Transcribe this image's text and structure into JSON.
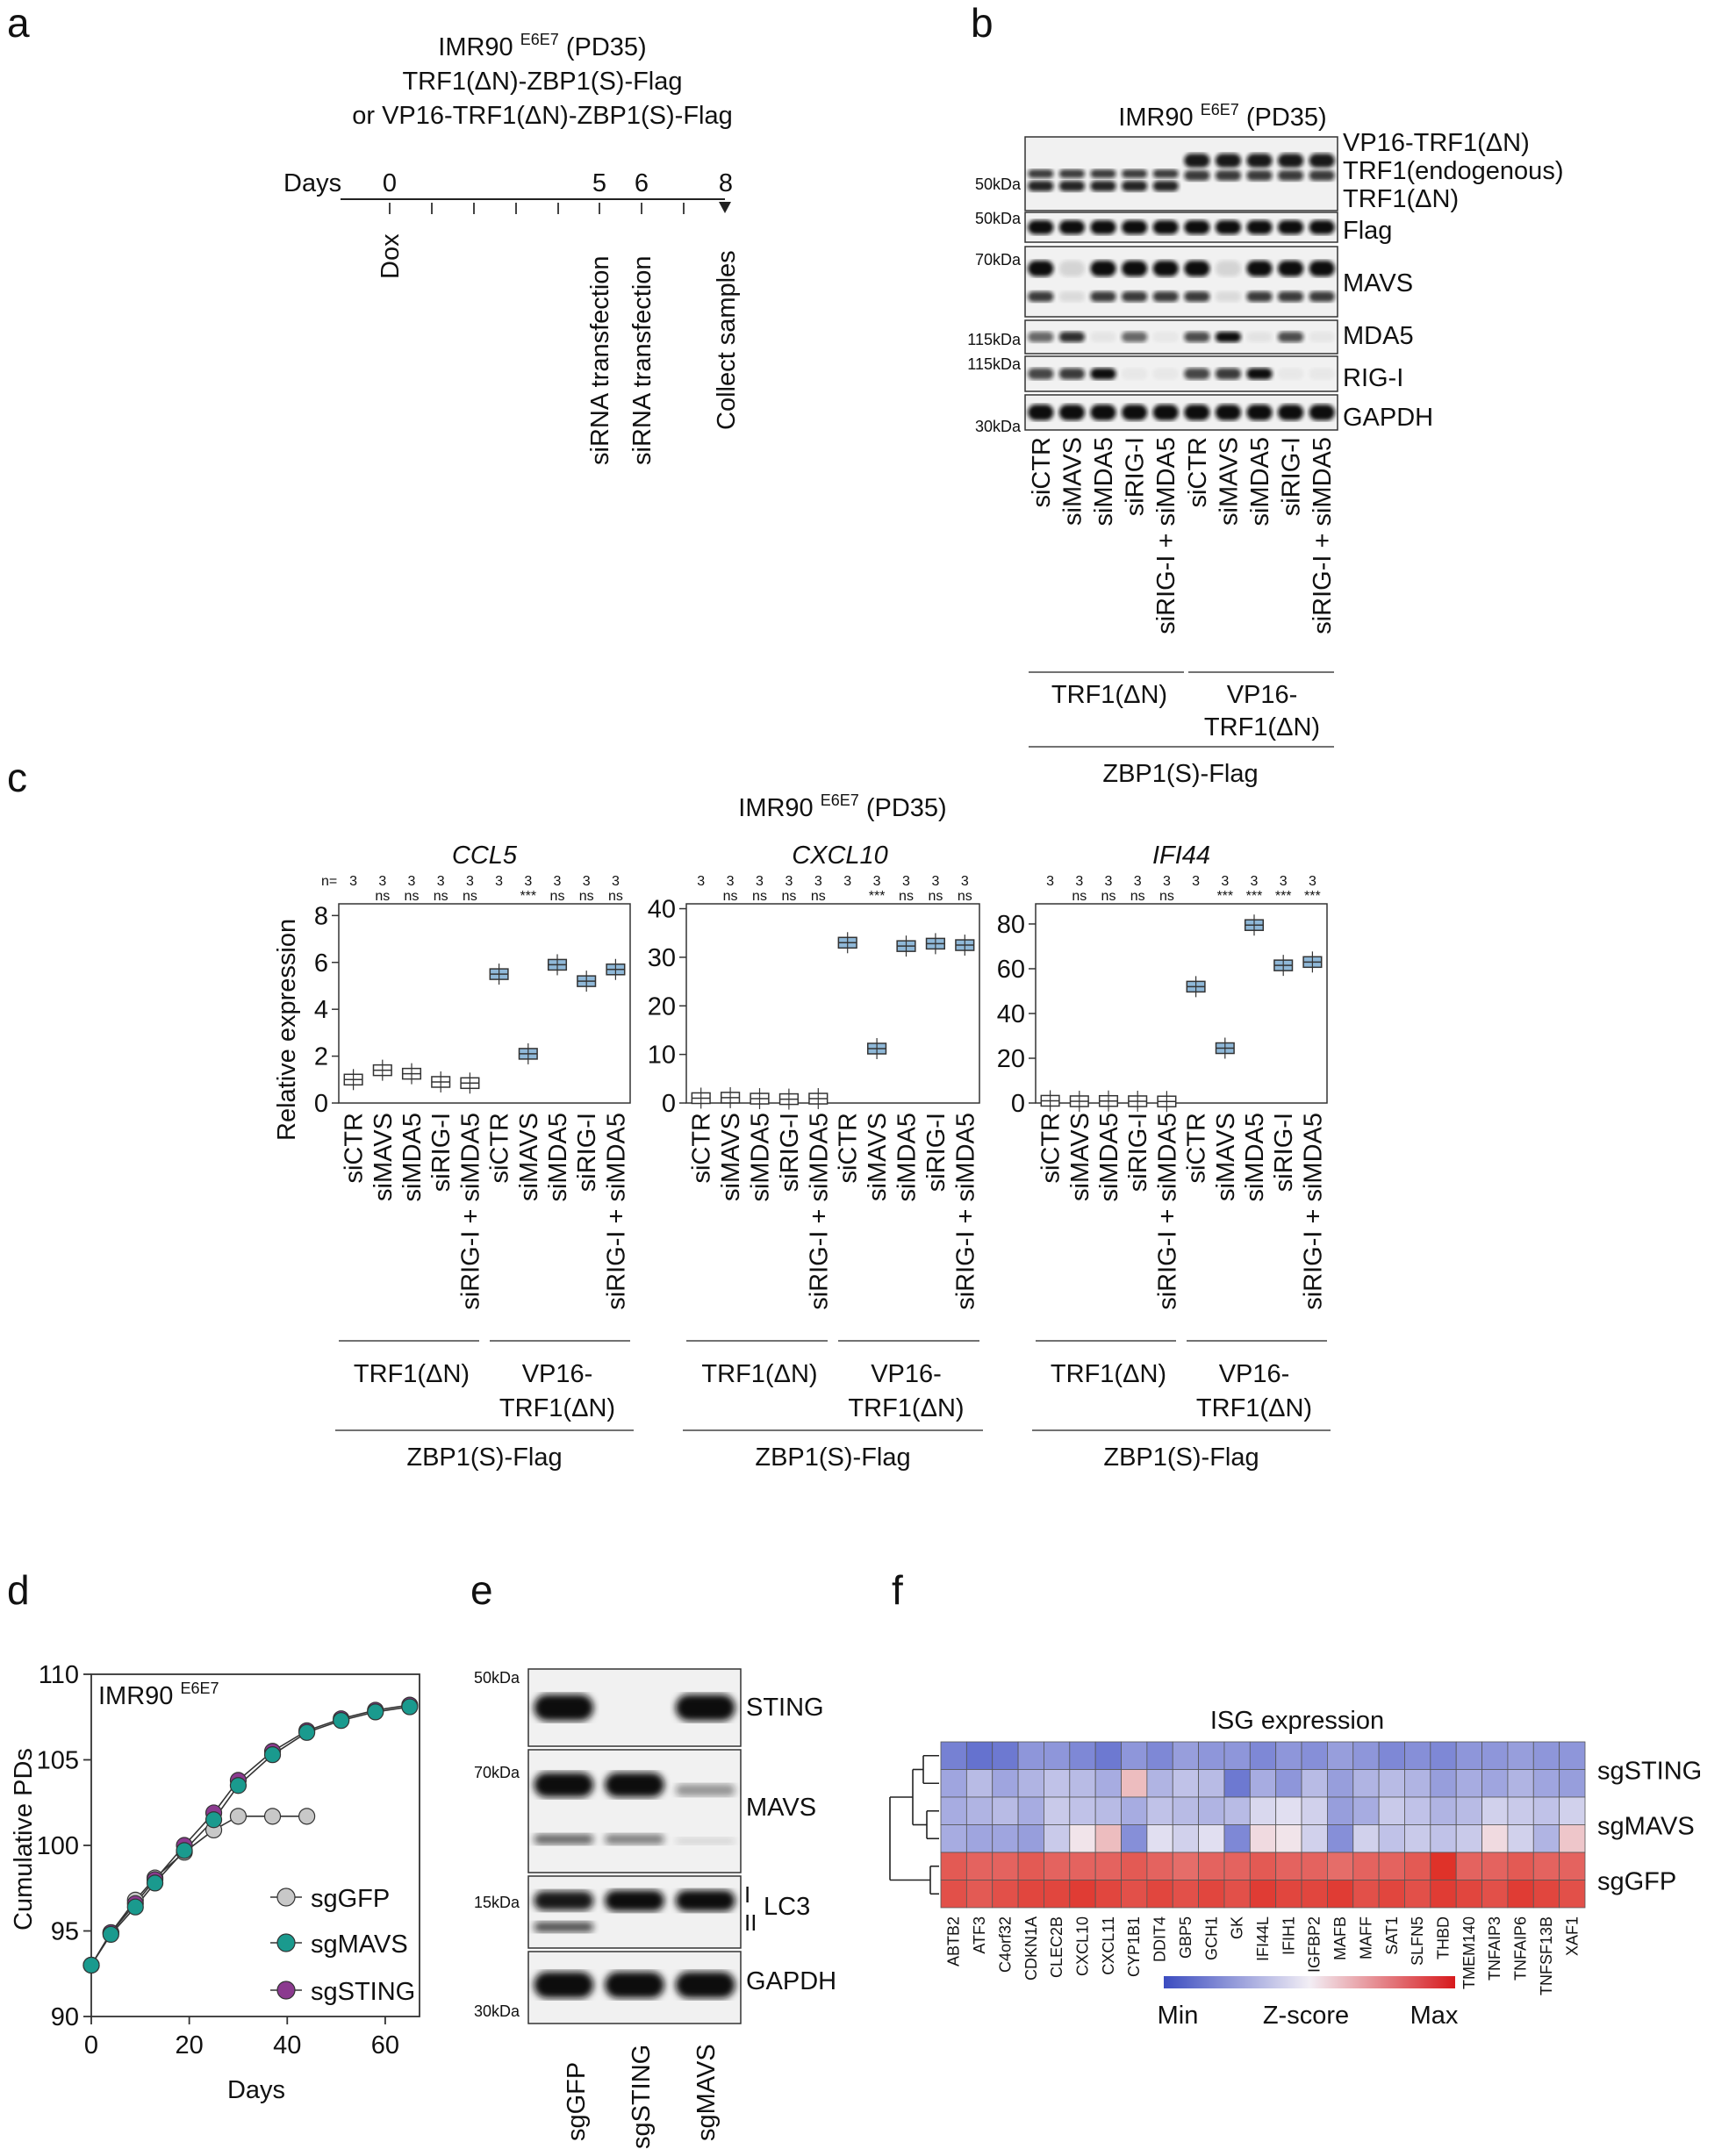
{
  "panel_letters": [
    "a",
    "b",
    "c",
    "d",
    "e",
    "f"
  ],
  "a": {
    "title_lines": [
      "IMR90 ",
      "E6E7",
      " (PD35)"
    ],
    "line2": "TRF1(ΔN)-ZBP1(S)-Flag",
    "line3": "or VP16-TRF1(ΔN)-ZBP1(S)-Flag",
    "days_label": "Days",
    "day_ticks": [
      "0",
      "5",
      "6",
      "8"
    ],
    "events": [
      "Dox",
      "siRNA transfection",
      "siRNA transfection",
      "Collect samples"
    ]
  },
  "b": {
    "cell": "IMR90 ",
    "cell_sup": "E6E7",
    "cell_pd": " (PD35)",
    "mw_markers": [
      "50kDa",
      "50kDa",
      "70kDa",
      "115kDa",
      "115kDa",
      "30kDa"
    ],
    "blot_labels": [
      "VP16-TRF1(ΔN)",
      "TRF1(endogenous)",
      "TRF1(ΔN)",
      "Flag",
      "MAVS",
      "MDA5",
      "RIG-I",
      "GAPDH"
    ],
    "lanes": [
      "siCTR",
      "siMAVS",
      "siMDA5",
      "siRIG-I",
      "siRIG-I + siMDA5",
      "siCTR",
      "siMAVS",
      "siMDA5",
      "siRIG-I",
      "siRIG-I + siMDA5"
    ],
    "group1": "TRF1(ΔN)",
    "group2_l1": "VP16-",
    "group2_l2": "TRF1(ΔN)",
    "construct": "ZBP1(S)-Flag"
  },
  "c": {
    "cell": "IMR90 ",
    "cell_sup": "E6E7",
    "cell_pd": " (PD35)",
    "ylabel": "Relative expression",
    "n_label": "n=",
    "n_values": [
      "3",
      "3",
      "3",
      "3",
      "3",
      "3",
      "3",
      "3",
      "3",
      "3"
    ],
    "group1": "TRF1(ΔN)",
    "group2_l1": "VP16-",
    "group2_l2": "TRF1(ΔN)",
    "construct": "ZBP1(S)-Flag"
  },
  "chart_data": [
    {
      "type": "box",
      "title": "CCL5",
      "categories": [
        "siCTR",
        "siMAVS",
        "siMDA5",
        "siRIG-I",
        "siRIG-I + siMDA5",
        "siCTR",
        "siMAVS",
        "siMDA5",
        "siRIG-I",
        "siRIG-I + siMDA5"
      ],
      "values": [
        1.0,
        1.4,
        1.25,
        0.9,
        0.85,
        5.5,
        2.1,
        5.9,
        5.2,
        5.7
      ],
      "significance": [
        "",
        "ns",
        "ns",
        "ns",
        "ns",
        "",
        "***",
        "ns",
        "ns",
        "ns"
      ],
      "ylim": [
        0,
        8.5
      ],
      "yticks": [
        "0",
        "2",
        "4",
        "6",
        "8"
      ],
      "filled": [
        false,
        false,
        false,
        false,
        false,
        true,
        true,
        true,
        true,
        true
      ]
    },
    {
      "type": "box",
      "title": "CXCL10",
      "categories": [
        "siCTR",
        "siMAVS",
        "siMDA5",
        "siRIG-I",
        "siRIG-I + siMDA5",
        "siCTR",
        "siMAVS",
        "siMDA5",
        "siRIG-I",
        "siRIG-I + siMDA5"
      ],
      "values": [
        1.0,
        1.1,
        0.9,
        0.8,
        0.9,
        33.0,
        11.2,
        32.3,
        32.8,
        32.5
      ],
      "significance": [
        "",
        "ns",
        "ns",
        "ns",
        "ns",
        "",
        "***",
        "ns",
        "ns",
        "ns"
      ],
      "ylim": [
        0,
        41
      ],
      "yticks": [
        "0",
        "10",
        "20",
        "30",
        "40"
      ],
      "filled": [
        false,
        false,
        false,
        false,
        false,
        true,
        true,
        true,
        true,
        true
      ]
    },
    {
      "type": "box",
      "title": "IFI44",
      "categories": [
        "siCTR",
        "siMAVS",
        "siMDA5",
        "siRIG-I",
        "siRIG-I + siMDA5",
        "siCTR",
        "siMAVS",
        "siMDA5",
        "siRIG-I",
        "siRIG-I + siMDA5"
      ],
      "values": [
        1.0,
        0.8,
        0.9,
        0.8,
        0.7,
        52.0,
        24.5,
        79.5,
        61.5,
        63.0
      ],
      "significance": [
        "",
        "ns",
        "ns",
        "ns",
        "ns",
        "",
        "***",
        "***",
        "***",
        "***"
      ],
      "ylim": [
        0,
        89
      ],
      "yticks": [
        "0",
        "20",
        "40",
        "60",
        "80"
      ],
      "filled": [
        false,
        false,
        false,
        false,
        false,
        true,
        true,
        true,
        true,
        true
      ]
    },
    {
      "type": "line",
      "title": "IMR90 E6E7",
      "xlabel": "Days",
      "ylabel": "Cumulative PDs",
      "xlim": [
        0,
        67
      ],
      "ylim": [
        90,
        110
      ],
      "xticks": [
        "0",
        "20",
        "40",
        "60"
      ],
      "yticks": [
        "90",
        "95",
        "100",
        "105",
        "110"
      ],
      "series": [
        {
          "name": "sgGFP",
          "color": "#c8c8c8",
          "x": [
            0,
            4,
            9,
            13,
            19,
            25,
            30,
            37,
            44
          ],
          "y": [
            93,
            94.9,
            96.8,
            98.1,
            99.6,
            100.9,
            101.7,
            101.7,
            101.7
          ]
        },
        {
          "name": "sgMAVS",
          "color": "#1a9a8e",
          "x": [
            0,
            4,
            9,
            13,
            19,
            25,
            30,
            37,
            44,
            51,
            58,
            65
          ],
          "y": [
            93,
            94.8,
            96.4,
            97.8,
            99.7,
            101.5,
            103.5,
            105.3,
            106.6,
            107.3,
            107.8,
            108.1
          ]
        },
        {
          "name": "sgSTING",
          "color": "#8b3a8f",
          "x": [
            0,
            4,
            9,
            13,
            19,
            25,
            30,
            37,
            44,
            51,
            58,
            65
          ],
          "y": [
            93,
            94.9,
            96.6,
            98.0,
            100.0,
            101.9,
            103.8,
            105.5,
            106.7,
            107.4,
            107.9,
            108.2
          ]
        }
      ]
    },
    {
      "type": "heatmap",
      "title": "ISG expression",
      "rows": [
        "sgSTING",
        "sgMAVS",
        "sgGFP"
      ],
      "columns": [
        "ABTB2",
        "ATF3",
        "C4orf32",
        "CDKN1A",
        "CLEC2B",
        "CXCL10",
        "CXCL11",
        "CYP1B1",
        "DDIT4",
        "GBP5",
        "GCH1",
        "GK",
        "IFI44L",
        "IFIH1",
        "IGFBP2",
        "MAFB",
        "MAFF",
        "SAT1",
        "SLFN5",
        "THBD",
        "TMEM140",
        "TNFAIP3",
        "TNFAIP6",
        "TNFSF13B",
        "XAF1"
      ],
      "replicates_per_row": 2,
      "values": [
        [
          -0.75,
          -0.85,
          -0.8,
          -0.6,
          -0.6,
          -0.7,
          -0.8,
          -0.6,
          -0.7,
          -0.55,
          -0.6,
          -0.6,
          -0.7,
          -0.6,
          -0.65,
          -0.55,
          -0.6,
          -0.7,
          -0.65,
          -0.7,
          -0.6,
          -0.6,
          -0.55,
          -0.6,
          -0.6
        ],
        [
          -0.5,
          -0.35,
          -0.5,
          -0.4,
          -0.3,
          -0.35,
          -0.45,
          0.25,
          -0.4,
          -0.3,
          -0.35,
          -0.8,
          -0.45,
          -0.6,
          -0.35,
          -0.55,
          -0.4,
          -0.35,
          -0.4,
          -0.55,
          -0.45,
          -0.5,
          -0.4,
          -0.5,
          -0.55
        ],
        [
          -0.45,
          -0.4,
          -0.35,
          -0.45,
          -0.25,
          -0.3,
          -0.35,
          -0.45,
          -0.3,
          -0.35,
          -0.4,
          -0.35,
          -0.15,
          -0.1,
          -0.2,
          -0.55,
          -0.45,
          -0.25,
          -0.3,
          -0.4,
          -0.35,
          -0.2,
          -0.25,
          -0.3,
          -0.2
        ],
        [
          -0.45,
          -0.5,
          -0.5,
          -0.55,
          -0.25,
          0.05,
          0.25,
          -0.65,
          -0.1,
          -0.2,
          -0.1,
          -0.7,
          0.1,
          0.05,
          -0.2,
          -0.65,
          -0.2,
          -0.3,
          -0.25,
          -0.3,
          -0.25,
          0.1,
          -0.2,
          -0.4,
          0.2
        ],
        [
          0.75,
          0.7,
          0.7,
          0.75,
          0.7,
          0.7,
          0.7,
          0.75,
          0.7,
          0.65,
          0.7,
          0.7,
          0.75,
          0.7,
          0.7,
          0.65,
          0.7,
          0.7,
          0.75,
          0.95,
          0.7,
          0.7,
          0.75,
          0.7,
          0.7
        ],
        [
          0.8,
          0.75,
          0.8,
          0.85,
          0.85,
          0.9,
          0.85,
          0.8,
          0.85,
          0.8,
          0.85,
          0.8,
          0.9,
          0.85,
          0.85,
          0.9,
          0.8,
          0.85,
          0.8,
          0.9,
          0.85,
          0.8,
          0.9,
          0.85,
          0.8
        ]
      ],
      "legend": {
        "min": "Min",
        "label": "Z-score",
        "max": "Max"
      }
    }
  ],
  "d": {
    "cell": "IMR90 ",
    "cell_sup": "E6E7"
  },
  "e": {
    "mw_markers": [
      "50kDa",
      "70kDa",
      "15kDa",
      "30kDa"
    ],
    "blot_labels": [
      "STING",
      "MAVS",
      "LC3",
      "GAPDH"
    ],
    "lc3_forms": [
      "I",
      "II"
    ],
    "lanes": [
      "sgGFP",
      "sgSTING",
      "sgMAVS"
    ]
  }
}
